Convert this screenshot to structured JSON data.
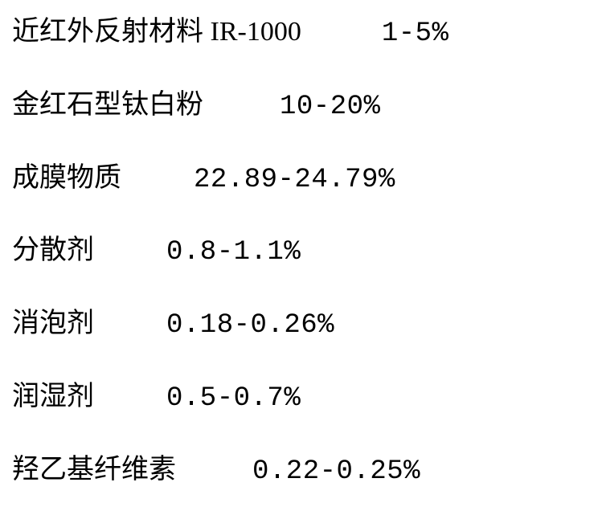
{
  "rows": [
    {
      "label": "近红外反射材料 IR-1000",
      "value": "1-5%",
      "gap": 100
    },
    {
      "label": "金红石型钛白粉",
      "value": "10-20%",
      "gap": 95
    },
    {
      "label": "成膜物质",
      "value": "22.89-24.79%",
      "gap": 90
    },
    {
      "label": "分散剂",
      "value": "0.8-1.1%",
      "gap": 90
    },
    {
      "label": "消泡剂",
      "value": "0.18-0.26%",
      "gap": 90
    },
    {
      "label": "润湿剂",
      "value": "0.5-0.7%",
      "gap": 90
    },
    {
      "label": "羟乙基纤维素",
      "value": "0.22-0.25%",
      "gap": 95
    }
  ],
  "style": {
    "font_size": 34,
    "text_color": "#000000",
    "background_color": "#ffffff",
    "row_spacing": 48,
    "font_family_cn": "SimSun",
    "font_family_num": "Courier New"
  }
}
